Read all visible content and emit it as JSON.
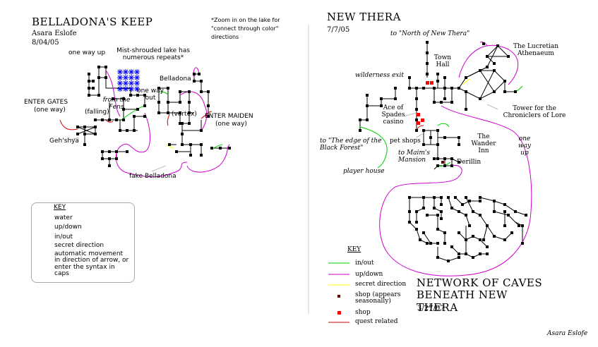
{
  "colors": {
    "water": "#0000ff",
    "updown": "#cc00cc",
    "inout": "#00cc00",
    "secret": "#ffff00",
    "quest": "#cc0000",
    "shop_seasonal": "#660000",
    "shop": "#ff0000",
    "divider": "#cccccc"
  },
  "left_map": {
    "title": "BELLADONA'S KEEP",
    "author": "Asara Eslofe",
    "date": "8/04/05",
    "note": "*Zoom in on the lake for \"connect through color\" directions",
    "labels": {
      "one_way_up": "one way up",
      "lake": "Mist-shrouded lake has numerous repeats*",
      "one_way_out": "one way out",
      "belladona": "Belladona",
      "enter_gates": "ENTER GATES",
      "enter_gates_sub": "(one way)",
      "falling": "(falling)",
      "from_fens": "from the Fens",
      "vortex": "(vortex)",
      "enter_maiden": "ENTER MAIDEN",
      "enter_maiden_sub": "(one way)",
      "gehshya": "Geh'shya",
      "fake_belladona": "fake Belladona"
    },
    "key": {
      "title": "KEY",
      "items": [
        {
          "label": "water",
          "kind": "water"
        },
        {
          "label": "up/down",
          "kind": "updown"
        },
        {
          "label": "in/out",
          "kind": "inout"
        },
        {
          "label": "secret direction",
          "kind": "secret"
        },
        {
          "label": "automatic movement in direction of arrow, or enter the syntax in caps",
          "kind": "quest"
        }
      ]
    }
  },
  "right_map": {
    "title": "NEW THERA",
    "date": "7/7/05",
    "labels": {
      "north": "to \"North of New Thera\"",
      "town_hall": "Town Hall",
      "lucretian": "The Lucretian Athenaeum",
      "wilderness": "wilderness exit",
      "ace": "Ace of Spades casino",
      "tower": "Tower for the Chroniclers of Lore",
      "black_forest": "to \"The edge of the Black Forest\"",
      "pet_shops": "pet shops",
      "wander_inn": "The Wander Inn",
      "one_way_up": "one way up",
      "maims": "to Maim's Mansion",
      "derillin": "Derillin",
      "player_house": "player house"
    },
    "caves_title": "NETWORK OF CAVES BENEATH NEW THERA",
    "caves_date": "3/27/07",
    "key": {
      "title": "KEY",
      "items": [
        {
          "label": "in/out",
          "kind": "inout"
        },
        {
          "label": "up/down",
          "kind": "updown"
        },
        {
          "label": "secret direction",
          "kind": "secret"
        },
        {
          "label": "shop (appears seasonally)",
          "kind": "shop_seasonal"
        },
        {
          "label": "shop",
          "kind": "shop"
        },
        {
          "label": "quest related",
          "kind": "quest"
        }
      ]
    },
    "signature": "Asara Eslofe"
  }
}
